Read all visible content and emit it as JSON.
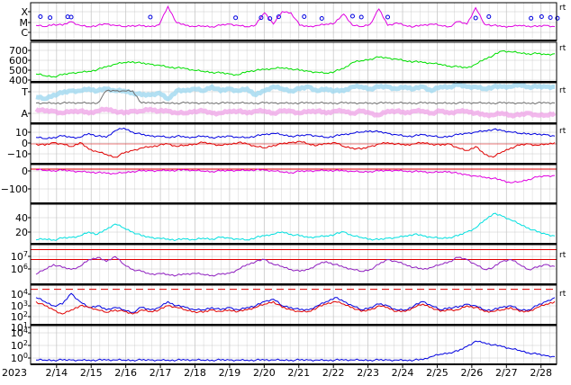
{
  "colors": {
    "magenta": "#e000e0",
    "green": "#00e000",
    "blue": "#0000e0",
    "red": "#e00000",
    "cyan": "#00e0e0",
    "purple": "#9020c0",
    "lightblue": "#a0d8f0",
    "pink": "#f0a8e8",
    "gray": "#707070",
    "grid": "#c8c8c8",
    "frame": "#000000"
  },
  "chart_data": [
    {
      "type": "line",
      "panel": "xray-class",
      "ytick_labels": [
        "X",
        "M",
        "C"
      ],
      "ylim": [
        0,
        3
      ],
      "series": [
        {
          "color": "magenta",
          "values": [
            1.2,
            1.1,
            1.3,
            1.2,
            1.5,
            1.2,
            1.1,
            1.2,
            1.3,
            1.2,
            1.1,
            1.2,
            1.15,
            1.1,
            1.25,
            2.7,
            1.4,
            1.2,
            1.1,
            1.15,
            1.1,
            1.2,
            1.3,
            1.2,
            1.1,
            1.25,
            2.2,
            1.3,
            2.3,
            2.2,
            1.2,
            1.1,
            1.2,
            1.3,
            1.4,
            2.1,
            1.2,
            1.1,
            1.3,
            2.5,
            1.2,
            1.4,
            1.2,
            1.1,
            1.2,
            1.3,
            1.2,
            1.1,
            1.5,
            1.3,
            2.6,
            1.3,
            1.2,
            1.1,
            1.1,
            1.2,
            1.15,
            1.1,
            1.2,
            1.1
          ]
        }
      ],
      "flares": [
        0.5,
        1.6,
        3.6,
        4.0,
        13.0,
        22.7,
        25.6,
        26.6,
        27.6,
        30.5,
        32.5,
        36.0,
        37.0,
        40.0,
        50.0,
        51.5,
        56.3,
        57.5,
        58.5,
        59.3
      ]
    },
    {
      "type": "line",
      "panel": "solar-wind-speed",
      "ytick_labels": [
        "700",
        "600",
        "500",
        "400"
      ],
      "ylim": [
        300,
        750
      ],
      "series": [
        {
          "color": "green",
          "values": [
            390,
            370,
            360,
            380,
            400,
            410,
            420,
            440,
            470,
            500,
            520,
            530,
            510,
            500,
            490,
            470,
            460,
            450,
            430,
            420,
            410,
            400,
            390,
            380,
            420,
            430,
            440,
            450,
            460,
            450,
            430,
            420,
            410,
            400,
            420,
            450,
            520,
            540,
            560,
            580,
            570,
            560,
            540,
            530,
            520,
            510,
            500,
            480,
            470,
            460,
            500,
            560,
            600,
            650,
            640,
            630,
            620,
            620,
            610,
            620
          ]
        }
      ]
    },
    {
      "type": "area",
      "panel": "imf-sector",
      "ytick_labels": [
        "T",
        "A"
      ],
      "ylim": [
        0,
        1
      ],
      "series": [
        {
          "color": "lightblue",
          "values": [
            0.65,
            0.6,
            0.7,
            0.75,
            0.8,
            0.8,
            0.85,
            0.8,
            0.85,
            0.8,
            0.8,
            0.75,
            0.7,
            0.7,
            0.75,
            0.6,
            0.8,
            0.8,
            0.85,
            0.8,
            0.9,
            0.8,
            0.85,
            0.8,
            0.85,
            0.7,
            0.8,
            0.9,
            0.85,
            0.8,
            0.85,
            0.9,
            0.8,
            0.85,
            0.8,
            0.8,
            0.9,
            0.9,
            0.85,
            0.9,
            0.9,
            0.85,
            0.9,
            0.85,
            0.9,
            0.8,
            0.9,
            0.9,
            0.95,
            0.9,
            0.9,
            0.85,
            0.9,
            0.9,
            0.9,
            0.95,
            0.9,
            0.9,
            0.9,
            0.9
          ]
        },
        {
          "color": "pink",
          "values": [
            0.35,
            0.3,
            0.3,
            0.25,
            0.3,
            0.3,
            0.25,
            0.3,
            0.35,
            0.3,
            0.25,
            0.3,
            0.3,
            0.35,
            0.3,
            0.3,
            0.25,
            0.25,
            0.3,
            0.3,
            0.25,
            0.25,
            0.3,
            0.3,
            0.25,
            0.3,
            0.3,
            0.25,
            0.3,
            0.3,
            0.25,
            0.3,
            0.3,
            0.25,
            0.3,
            0.3,
            0.25,
            0.3,
            0.25,
            0.2,
            0.3,
            0.3,
            0.25,
            0.3,
            0.3,
            0.25,
            0.3,
            0.25,
            0.3,
            0.3,
            0.25,
            0.2,
            0.2,
            0.25,
            0.2,
            0.2,
            0.25,
            0.2,
            0.2,
            0.25
          ]
        },
        {
          "color": "gray",
          "values": [
            0.5,
            0.5,
            0.5,
            0.5,
            0.5,
            0.5,
            0.5,
            0.5,
            0.8,
            0.8,
            0.8,
            0.8,
            0.5,
            0.5,
            0.5,
            0.5,
            0.5,
            0.5,
            0.5,
            0.5,
            0.5,
            0.5,
            0.5,
            0.5,
            0.5,
            0.5,
            0.5,
            0.5,
            0.5,
            0.5,
            0.5,
            0.5,
            0.5,
            0.5,
            0.5,
            0.5,
            0.5,
            0.5,
            0.5,
            0.5,
            0.5,
            0.5,
            0.5,
            0.5,
            0.5,
            0.5,
            0.5,
            0.5,
            0.5,
            0.5,
            0.5,
            0.5,
            0.5,
            0.5,
            0.5,
            0.5,
            0.5,
            0.5,
            0.5,
            0.5
          ]
        }
      ]
    },
    {
      "type": "line",
      "panel": "imf-bz",
      "ytick_labels": [
        "10",
        "0",
        "−10"
      ],
      "ylim": [
        -15,
        15
      ],
      "series": [
        {
          "color": "blue",
          "values": [
            5,
            4,
            5,
            6,
            5,
            5,
            8,
            6,
            5,
            10,
            12,
            9,
            7,
            6,
            6,
            5,
            6,
            5,
            5,
            6,
            5,
            5,
            6,
            5,
            5,
            6,
            7,
            8,
            7,
            6,
            6,
            7,
            6,
            5,
            6,
            7,
            8,
            9,
            10,
            9,
            8,
            7,
            6,
            6,
            7,
            6,
            5,
            6,
            7,
            8,
            9,
            10,
            11,
            10,
            9,
            8,
            8,
            7,
            7,
            6
          ]
        },
        {
          "color": "red",
          "values": [
            0,
            -1,
            1,
            0,
            -2,
            1,
            -4,
            -6,
            -8,
            -10,
            -7,
            -5,
            -3,
            -2,
            -1,
            0,
            -2,
            -1,
            0,
            1,
            0,
            -1,
            0,
            1,
            0,
            -2,
            -3,
            -1,
            0,
            1,
            2,
            0,
            -1,
            0,
            1,
            -2,
            -3,
            -4,
            -2,
            0,
            1,
            0,
            -1,
            0,
            1,
            0,
            -1,
            0,
            -3,
            -5,
            -2,
            -8,
            -10,
            -6,
            -3,
            -1,
            0,
            -1,
            0,
            1
          ]
        }
      ]
    },
    {
      "type": "line",
      "panel": "dst-index",
      "ytick_labels": [
        "0",
        "−100"
      ],
      "ylim": [
        -150,
        20
      ],
      "series": [
        {
          "color": "magenta",
          "values": [
            -2,
            -5,
            -6,
            -5,
            -8,
            -10,
            -12,
            -15,
            -18,
            -20,
            -15,
            -10,
            -8,
            -7,
            -6,
            -5,
            -5,
            -4,
            -6,
            -8,
            -10,
            -8,
            -6,
            -5,
            -4,
            -3,
            -5,
            -8,
            -12,
            -15,
            -10,
            -8,
            -6,
            -5,
            -6,
            -8,
            -10,
            -12,
            -10,
            -8,
            -6,
            -5,
            -8,
            -10,
            -12,
            -15,
            -12,
            -10,
            -20,
            -25,
            -30,
            -35,
            -40,
            -50,
            -60,
            -55,
            -45,
            -35,
            -30,
            -28
          ]
        }
      ]
    },
    {
      "type": "line",
      "panel": "kp-index",
      "ytick_labels": [
        "40",
        "20"
      ],
      "ylim": [
        0,
        50
      ],
      "series": [
        {
          "color": "cyan",
          "values": [
            5,
            6,
            5,
            7,
            8,
            10,
            15,
            12,
            18,
            25,
            20,
            15,
            10,
            8,
            7,
            6,
            5,
            6,
            5,
            7,
            6,
            8,
            7,
            6,
            5,
            8,
            10,
            12,
            15,
            12,
            10,
            8,
            9,
            10,
            12,
            15,
            10,
            8,
            6,
            5,
            7,
            8,
            10,
            12,
            10,
            8,
            7,
            8,
            10,
            15,
            20,
            30,
            38,
            35,
            30,
            25,
            20,
            15,
            12,
            10
          ]
        }
      ]
    },
    {
      "type": "line",
      "panel": "electron-flux",
      "ytick_labels": [
        "10^7",
        "10^6"
      ],
      "log": true,
      "ylim": [
        3.5,
        7.5
      ],
      "thresholds": [
        7,
        6
      ],
      "series": [
        {
          "color": "purple",
          "values": [
            4.5,
            5.0,
            5.5,
            5.2,
            5.0,
            5.3,
            6.0,
            6.2,
            5.8,
            6.3,
            5.5,
            5.0,
            4.8,
            4.5,
            4.6,
            4.5,
            4.4,
            4.5,
            4.6,
            4.5,
            4.4,
            4.5,
            4.6,
            5.0,
            5.5,
            5.8,
            6.0,
            5.5,
            5.3,
            5.0,
            4.8,
            5.0,
            5.5,
            5.8,
            5.5,
            5.2,
            5.0,
            4.8,
            5.0,
            5.5,
            6.0,
            5.8,
            5.5,
            5.2,
            5.0,
            5.2,
            5.5,
            5.8,
            6.2,
            6.0,
            5.5,
            5.0,
            5.2,
            5.8,
            6.0,
            5.5,
            5.0,
            5.2,
            5.5,
            5.3
          ]
        }
      ]
    },
    {
      "type": "line",
      "panel": "proton-flux",
      "ytick_labels": [
        "10^4",
        "10^3",
        "10^2",
        "10^1"
      ],
      "log": true,
      "ylim": [
        -0.3,
        4.5
      ],
      "thresholds": [
        4
      ],
      "series": [
        {
          "color": "blue",
          "values": [
            3.0,
            2.5,
            2.0,
            2.2,
            3.5,
            2.5,
            1.8,
            2.0,
            1.5,
            1.8,
            1.5,
            1.2,
            1.8,
            1.5,
            1.8,
            2.5,
            2.0,
            1.8,
            1.5,
            1.5,
            1.8,
            1.5,
            1.8,
            1.5,
            1.8,
            2.0,
            2.5,
            2.8,
            2.0,
            1.8,
            1.5,
            1.5,
            2.0,
            2.5,
            3.0,
            2.5,
            2.0,
            1.5,
            1.8,
            2.2,
            2.0,
            1.5,
            1.5,
            2.0,
            2.5,
            2.0,
            1.5,
            1.8,
            1.8,
            2.2,
            2.0,
            1.5,
            1.5,
            1.8,
            2.0,
            1.5,
            1.5,
            2.0,
            2.5,
            3.0
          ]
        },
        {
          "color": "red",
          "values": [
            2.5,
            2.0,
            1.5,
            1.0,
            1.5,
            2.0,
            1.8,
            1.5,
            1.2,
            1.5,
            1.3,
            1.0,
            1.5,
            1.3,
            1.5,
            2.0,
            1.8,
            1.5,
            1.3,
            1.2,
            1.5,
            1.3,
            1.5,
            1.3,
            1.5,
            1.8,
            2.2,
            2.5,
            1.8,
            1.5,
            1.3,
            1.3,
            1.8,
            2.2,
            2.5,
            2.2,
            1.8,
            1.3,
            1.5,
            2.0,
            1.8,
            1.3,
            1.3,
            1.8,
            2.2,
            1.8,
            1.3,
            1.5,
            1.5,
            2.0,
            1.8,
            1.3,
            1.3,
            1.5,
            1.8,
            1.3,
            1.3,
            1.8,
            2.2,
            2.5
          ]
        }
      ]
    },
    {
      "type": "line",
      "panel": "high-energy-proton",
      "ytick_labels": [
        "10^4",
        "10^2",
        "10^0"
      ],
      "log": true,
      "ylim": [
        -0.5,
        4.5
      ],
      "series": [
        {
          "color": "blue",
          "values": [
            0.05,
            0.05,
            0.05,
            0.05,
            0.05,
            0.05,
            0.05,
            0.05,
            0.05,
            0.05,
            0.05,
            0.05,
            0.05,
            0.05,
            0.05,
            0.05,
            0.05,
            0.05,
            0.05,
            0.05,
            0.05,
            0.05,
            0.05,
            0.05,
            0.05,
            0.05,
            0.05,
            0.05,
            0.05,
            0.05,
            0.05,
            0.05,
            0.05,
            0.05,
            0.05,
            0.05,
            0.05,
            0.05,
            0.05,
            0.05,
            0.05,
            0.05,
            0.05,
            0.05,
            0.1,
            0.5,
            0.8,
            1.0,
            1.2,
            1.8,
            2.5,
            2.3,
            2.0,
            1.8,
            1.5,
            1.3,
            1.0,
            0.8,
            0.6,
            0.5
          ]
        }
      ]
    }
  ],
  "x_axis": {
    "year_label": "2023",
    "ticks": [
      "2/14",
      "2/15",
      "2/16",
      "2/17",
      "2/18",
      "2/19",
      "2/20",
      "2/21",
      "2/22",
      "2/23",
      "2/24",
      "2/25",
      "2/26",
      "2/27",
      "2/28"
    ]
  },
  "rt_marks": [
    "rt",
    "rt",
    "rt",
    "rt",
    "rt",
    "rt"
  ]
}
